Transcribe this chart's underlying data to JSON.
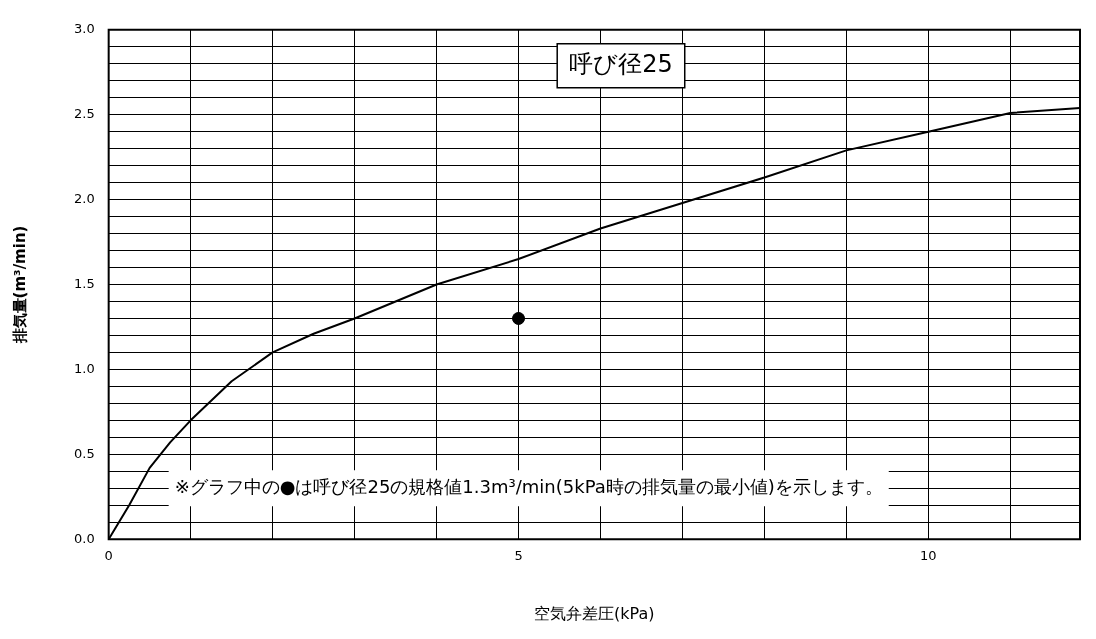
{
  "chart_data": {
    "type": "line",
    "title": "呼び径25",
    "xlabel": "空気弁差圧(kPa)",
    "ylabel": "排気量(m³/min)",
    "annotations": [
      "※グラフ中の●は呼び径25の規格値1.3m³/min(5kPa時の排気量の最小値)を示します。"
    ],
    "xlim": [
      0,
      11.85
    ],
    "ylim": [
      0,
      3
    ],
    "xticks": [
      0,
      {
        "value": 1,
        "label": null
      },
      {
        "value": 2,
        "label": null
      },
      {
        "value": 3,
        "label": null
      },
      {
        "value": 4,
        "label": null
      },
      5,
      {
        "value": 6,
        "label": null
      },
      {
        "value": 7,
        "label": null
      },
      {
        "value": 8,
        "label": null
      },
      {
        "value": 9,
        "label": null
      },
      10,
      {
        "value": 11,
        "label": null
      }
    ],
    "yticks": [
      {
        "value": 0,
        "label": "0.0"
      },
      {
        "value": 0.1,
        "label": null
      },
      {
        "value": 0.2,
        "label": null
      },
      {
        "value": 0.3,
        "label": null
      },
      {
        "value": 0.4,
        "label": null
      },
      0.5,
      {
        "value": 0.6,
        "label": null
      },
      {
        "value": 0.7,
        "label": null
      },
      {
        "value": 0.8,
        "label": null
      },
      {
        "value": 0.9,
        "label": null
      },
      {
        "value": 1,
        "label": "1.0"
      },
      {
        "value": 1.1,
        "label": null
      },
      {
        "value": 1.2,
        "label": null
      },
      {
        "value": 1.3,
        "label": null
      },
      {
        "value": 1.4,
        "label": null
      },
      1.5,
      {
        "value": 1.6,
        "label": null
      },
      {
        "value": 1.7,
        "label": null
      },
      {
        "value": 1.8,
        "label": null
      },
      {
        "value": 1.9,
        "label": null
      },
      {
        "value": 2,
        "label": "2.0"
      },
      {
        "value": 2.1,
        "label": null
      },
      {
        "value": 2.2,
        "label": null
      },
      {
        "value": 2.3,
        "label": null
      },
      {
        "value": 2.4,
        "label": null
      },
      2.5,
      {
        "value": 2.6,
        "label": null
      },
      {
        "value": 2.7,
        "label": null
      },
      {
        "value": 2.8,
        "label": null
      },
      {
        "value": 2.9,
        "label": null
      },
      {
        "value": 3,
        "label": "3.0"
      }
    ],
    "grid": true,
    "legend": false,
    "marker": "none",
    "line_style": "solid",
    "series": [
      {
        "color": "#000000",
        "x": [
          0,
          0.25,
          0.5,
          0.75,
          1,
          1.5,
          2,
          2.5,
          3,
          4,
          5,
          6,
          7,
          8,
          9,
          10,
          11,
          11.85
        ],
        "values": [
          0,
          0.2,
          0.42,
          0.57,
          0.7,
          0.93,
          1.1,
          1.21,
          1.3,
          1.5,
          1.65,
          1.83,
          1.98,
          2.13,
          2.29,
          2.4,
          2.51,
          2.54
        ]
      },
      {
        "type": "scatter",
        "color": "#000000",
        "marker": "circle",
        "x": [
          5
        ],
        "values": [
          1.3
        ]
      }
    ]
  }
}
